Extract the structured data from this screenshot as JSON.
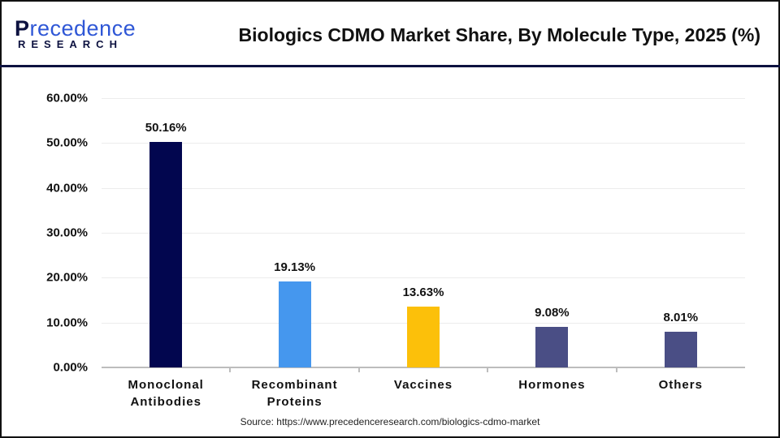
{
  "header": {
    "logo_line1_initial": "P",
    "logo_line1_rest": "recedence",
    "logo_line2": "RESEARCH",
    "title": "Biologics CDMO Market Share, By Molecule Type, 2025 (%)"
  },
  "yaxis": {
    "ticks": [
      "0.00%",
      "10.00%",
      "20.00%",
      "30.00%",
      "40.00%",
      "50.00%",
      "60.00%"
    ]
  },
  "bars": [
    {
      "category": "Monoclonal\nAntibodies",
      "value": 50.16,
      "label": "50.16%",
      "color": "#02064f"
    },
    {
      "category": "Recombinant\nProteins",
      "value": 19.13,
      "label": "19.13%",
      "color": "#4597ee"
    },
    {
      "category": "Vaccines",
      "value": 13.63,
      "label": "13.63%",
      "color": "#fcc00a"
    },
    {
      "category": "Hormones",
      "value": 9.08,
      "label": "9.08%",
      "color": "#4a4e85"
    },
    {
      "category": "Others",
      "value": 8.01,
      "label": "8.01%",
      "color": "#4a4e85"
    }
  ],
  "source": "Source: https://www.precedenceresearch.com/biologics-cdmo-market",
  "chart_data": {
    "type": "bar",
    "title": "Biologics CDMO Market Share, By Molecule Type, 2025 (%)",
    "categories": [
      "Monoclonal Antibodies",
      "Recombinant Proteins",
      "Vaccines",
      "Hormones",
      "Others"
    ],
    "values": [
      50.16,
      19.13,
      13.63,
      9.08,
      8.01
    ],
    "data_labels": [
      "50.16%",
      "19.13%",
      "13.63%",
      "9.08%",
      "8.01%"
    ],
    "xlabel": "",
    "ylabel": "",
    "ylim": [
      0,
      60
    ],
    "yticks": [
      "0.00%",
      "10.00%",
      "20.00%",
      "30.00%",
      "40.00%",
      "50.00%",
      "60.00%"
    ],
    "grid": true,
    "legend": "none",
    "colors": [
      "#02064f",
      "#4597ee",
      "#fcc00a",
      "#4a4e85",
      "#4a4e85"
    ],
    "source": "Source: https://www.precedenceresearch.com/biologics-cdmo-market"
  }
}
